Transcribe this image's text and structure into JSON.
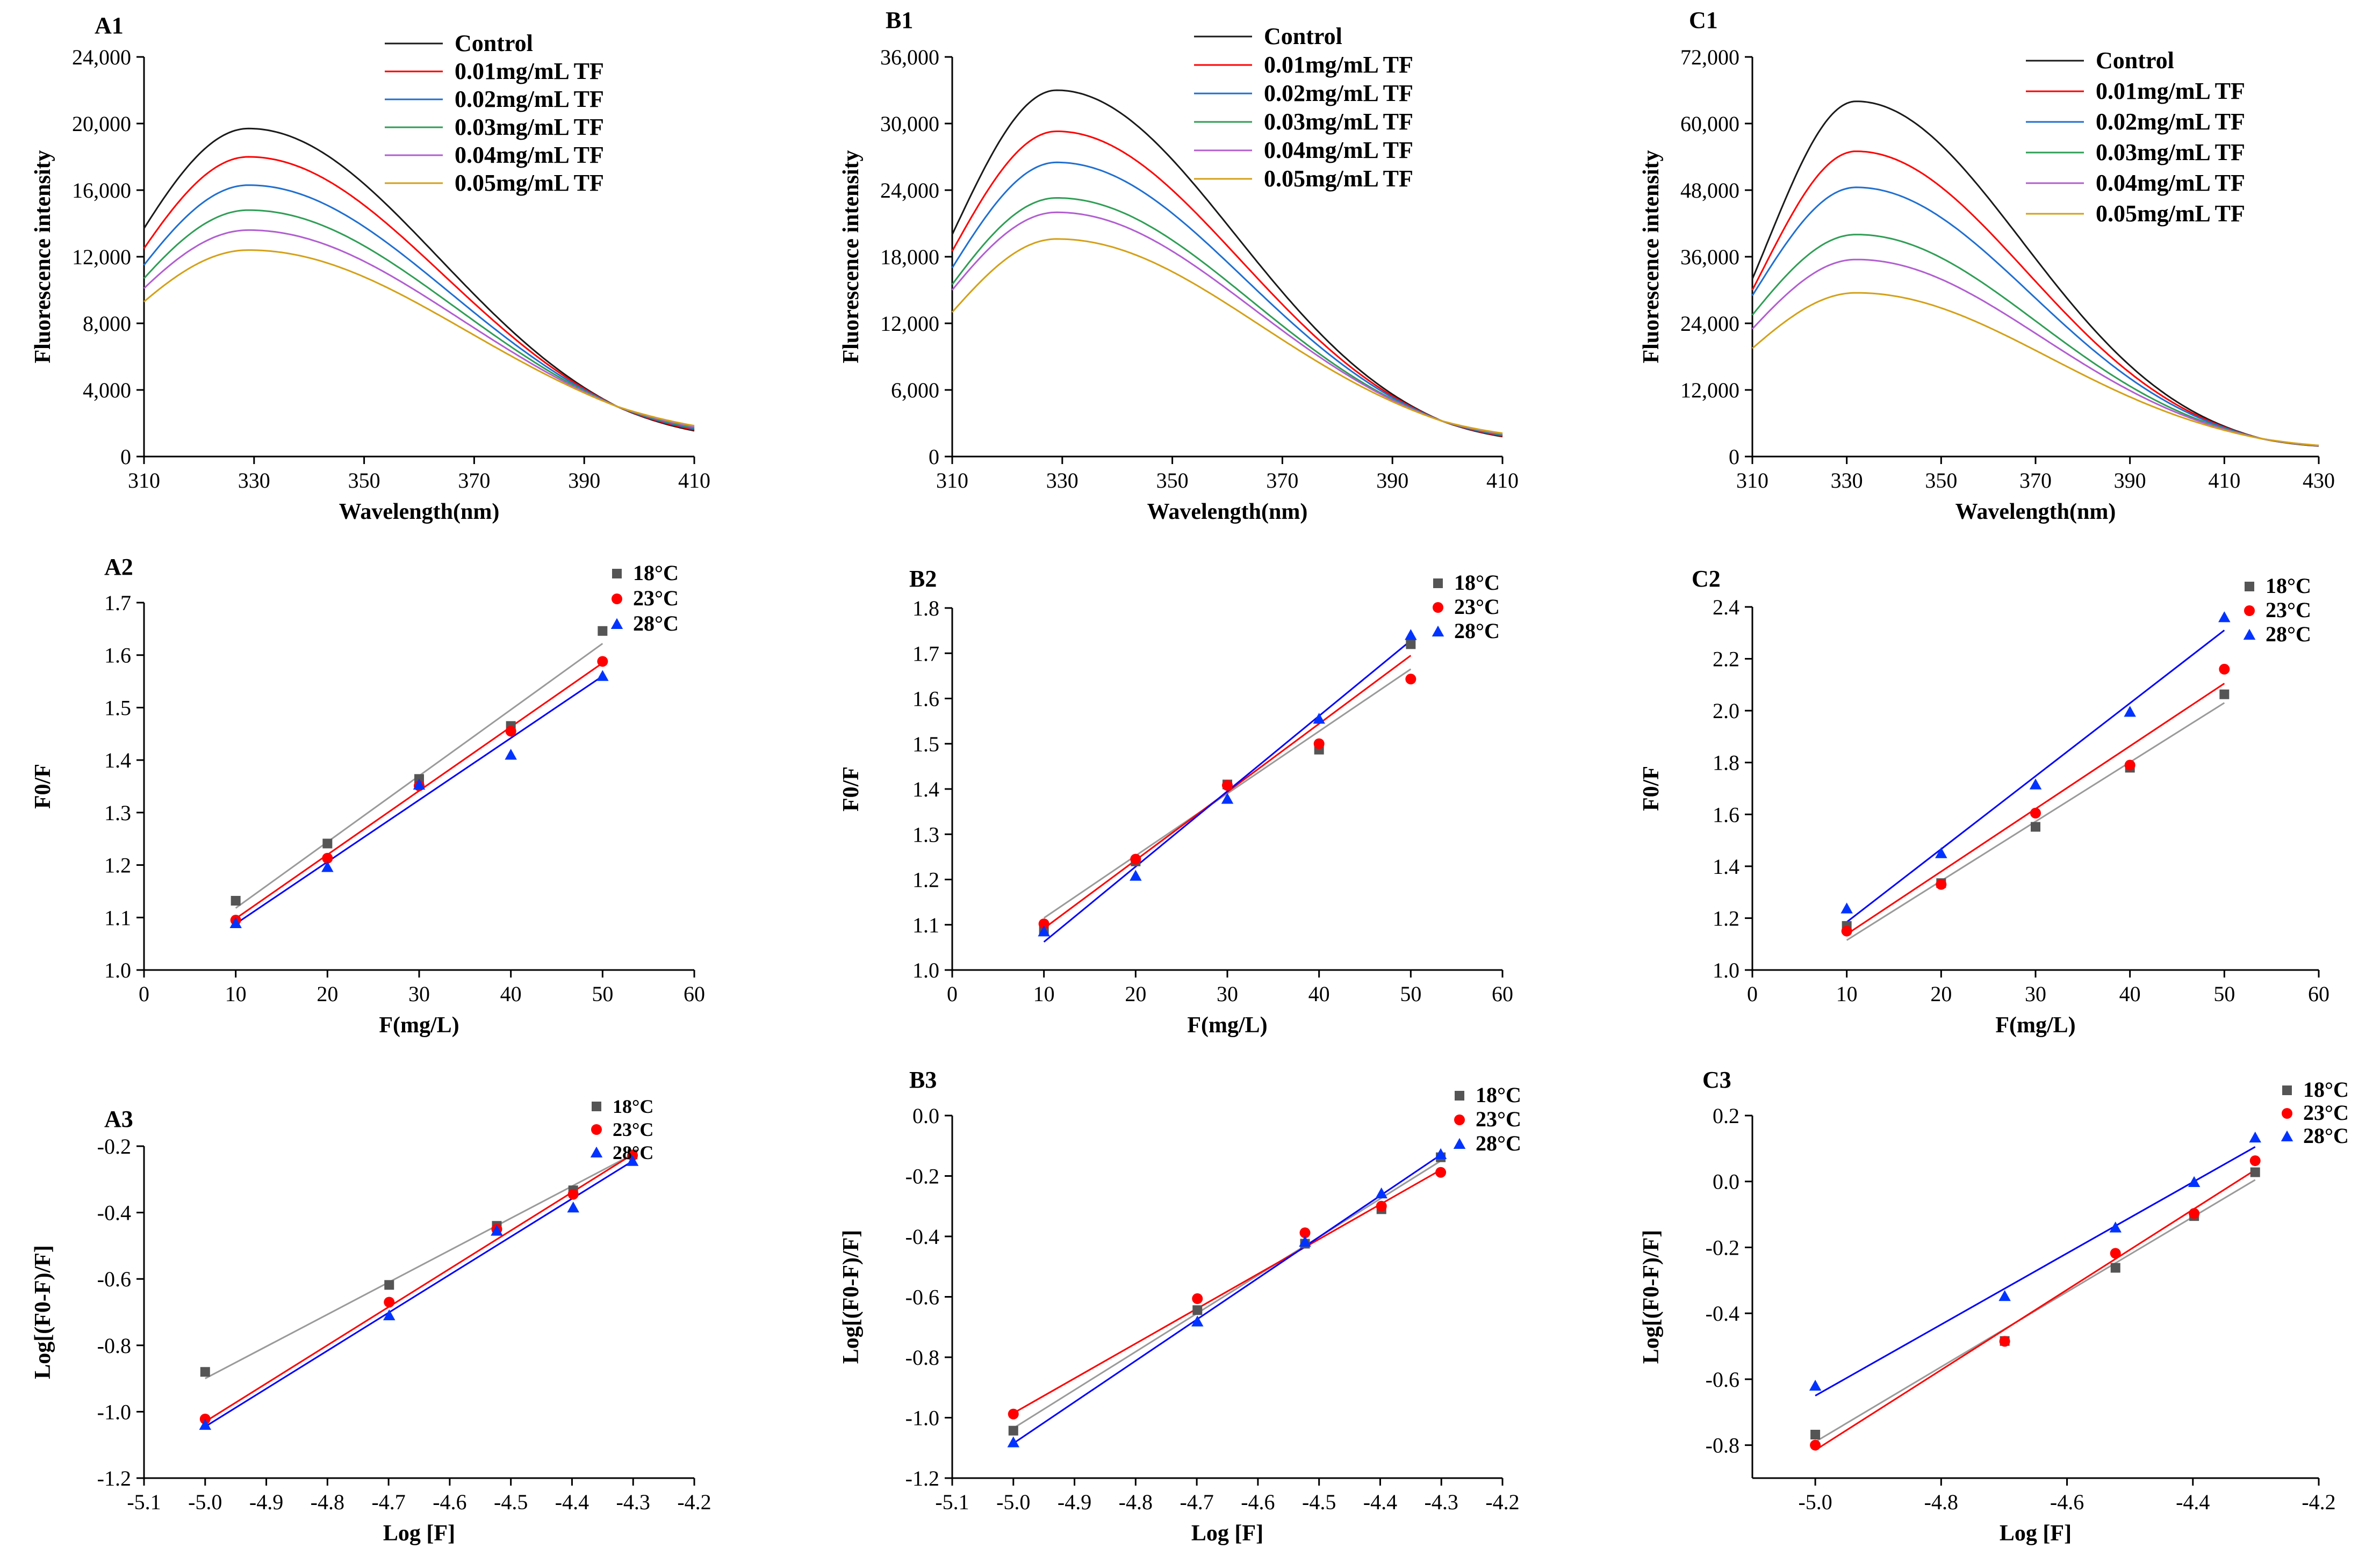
{
  "colors": {
    "Control": "#1a1a1a",
    "0.01mg/mL TF": "#ff0000",
    "0.02mg/mL TF": "#1f6fd1",
    "0.03mg/mL TF": "#2f9e55",
    "0.04mg/mL TF": "#b15ed1",
    "0.05mg/mL TF": "#d4a017",
    "18°C": "#555555",
    "23°C": "#ff0000",
    "28°C": "#0033ff",
    "fit18": "#9a9a9a",
    "fit23": "#ff0000",
    "fit28": "#0000ff"
  },
  "chart_data": [
    {
      "id": "A1",
      "type": "line",
      "label": "A1",
      "xlabel": "Wavelength(nm)",
      "ylabel": "Fluorescence intensity",
      "xlim": [
        310,
        410
      ],
      "ylim": [
        0,
        24000
      ],
      "xticks": [
        310,
        330,
        350,
        370,
        390,
        410
      ],
      "yticks": [
        0,
        4000,
        8000,
        12000,
        16000,
        20000,
        24000
      ],
      "ytick_labels": [
        "0",
        "4,000",
        "8,000",
        "12,000",
        "16,000",
        "20,000",
        "24,000"
      ],
      "xtick_labels": [
        "310",
        "330",
        "350",
        "370",
        "390",
        "410"
      ],
      "peak_x": 329,
      "cross_x": 396,
      "cross_y": 3000,
      "end_y_min": 1550,
      "end_y_max": 1850,
      "series": [
        {
          "name": "Control",
          "start": 13700,
          "peak": 19700
        },
        {
          "name": "0.01mg/mL TF",
          "start": 12500,
          "peak": 18000
        },
        {
          "name": "0.02mg/mL TF",
          "start": 11500,
          "peak": 16300
        },
        {
          "name": "0.03mg/mL TF",
          "start": 10700,
          "peak": 14800
        },
        {
          "name": "0.04mg/mL TF",
          "start": 10100,
          "peak": 13600
        },
        {
          "name": "0.05mg/mL TF",
          "start": 9300,
          "peak": 12400
        }
      ]
    },
    {
      "id": "B1",
      "type": "line",
      "label": "B1",
      "xlabel": "Wavelength(nm)",
      "ylabel": "Fluorescence intensity",
      "xlim": [
        310,
        410
      ],
      "ylim": [
        0,
        36000
      ],
      "xticks": [
        310,
        330,
        350,
        370,
        390,
        410
      ],
      "yticks": [
        0,
        6000,
        12000,
        18000,
        24000,
        30000,
        36000
      ],
      "ytick_labels": [
        "0",
        "6,000",
        "12,000",
        "18,000",
        "24,000",
        "30,000",
        "36,000"
      ],
      "xtick_labels": [
        "310",
        "330",
        "350",
        "370",
        "390",
        "410"
      ],
      "peak_x": 329,
      "cross_x": 399,
      "cross_y": 3200,
      "end_y_min": 1800,
      "end_y_max": 2100,
      "series": [
        {
          "name": "Control",
          "start": 20000,
          "peak": 33000
        },
        {
          "name": "0.01mg/mL TF",
          "start": 18500,
          "peak": 29300
        },
        {
          "name": "0.02mg/mL TF",
          "start": 17000,
          "peak": 26500
        },
        {
          "name": "0.03mg/mL TF",
          "start": 15500,
          "peak": 23300
        },
        {
          "name": "0.04mg/mL TF",
          "start": 15000,
          "peak": 22000
        },
        {
          "name": "0.05mg/mL TF",
          "start": 13000,
          "peak": 19600
        }
      ]
    },
    {
      "id": "C1",
      "type": "line",
      "label": "C1",
      "xlabel": "Wavelength(nm)",
      "ylabel": "Fluorescence intensity",
      "xlim": [
        310,
        430
      ],
      "ylim": [
        0,
        72000
      ],
      "xticks": [
        310,
        330,
        350,
        370,
        390,
        410,
        430
      ],
      "yticks": [
        0,
        12000,
        24000,
        36000,
        48000,
        60000,
        72000
      ],
      "ytick_labels": [
        "0",
        "12,000",
        "24,000",
        "36,000",
        "48,000",
        "60,000",
        "72,000"
      ],
      "xtick_labels": [
        "310",
        "330",
        "350",
        "370",
        "390",
        "410",
        "430"
      ],
      "peak_x": 332,
      "cross_x": 418,
      "cross_y": 3200,
      "end_y_min": 1900,
      "end_y_max": 2000,
      "series": [
        {
          "name": "Control",
          "start": 32000,
          "peak": 64000
        },
        {
          "name": "0.01mg/mL TF",
          "start": 30000,
          "peak": 55000
        },
        {
          "name": "0.02mg/mL TF",
          "start": 29000,
          "peak": 48500
        },
        {
          "name": "0.03mg/mL TF",
          "start": 25500,
          "peak": 40000
        },
        {
          "name": "0.04mg/mL TF",
          "start": 23000,
          "peak": 35500
        },
        {
          "name": "0.05mg/mL TF",
          "start": 19500,
          "peak": 29500
        }
      ]
    },
    {
      "id": "A2",
      "type": "scatter",
      "label": "A2",
      "xlabel": "F(mg/L)",
      "ylabel": "F0/F",
      "xlim": [
        0,
        60
      ],
      "ylim": [
        1.0,
        1.7
      ],
      "xticks": [
        0,
        10,
        20,
        30,
        40,
        50,
        60
      ],
      "yticks": [
        1.0,
        1.1,
        1.2,
        1.3,
        1.4,
        1.5,
        1.6,
        1.7
      ],
      "xtick_labels": [
        "0",
        "10",
        "20",
        "30",
        "40",
        "50",
        "60"
      ],
      "ytick_labels": [
        "1.0",
        "1.1",
        "1.2",
        "1.3",
        "1.4",
        "1.5",
        "1.6",
        "1.7"
      ],
      "series": [
        {
          "name": "18°C",
          "marker": "square",
          "x": [
            10,
            20,
            30,
            40,
            50
          ],
          "y": [
            1.132,
            1.241,
            1.364,
            1.465,
            1.646
          ],
          "fit": [
            [
              10,
              1.118
            ],
            [
              50,
              1.622
            ]
          ]
        },
        {
          "name": "23°C",
          "marker": "circle",
          "x": [
            10,
            20,
            30,
            40,
            50
          ],
          "y": [
            1.095,
            1.213,
            1.351,
            1.455,
            1.588
          ],
          "fit": [
            [
              10,
              1.098
            ],
            [
              50,
              1.585
            ]
          ]
        },
        {
          "name": "28°C",
          "marker": "triangle",
          "x": [
            10,
            20,
            30,
            40,
            50
          ],
          "y": [
            1.089,
            1.196,
            1.353,
            1.41,
            1.56
          ],
          "fit": [
            [
              10,
              1.088
            ],
            [
              50,
              1.56
            ]
          ]
        }
      ]
    },
    {
      "id": "B2",
      "type": "scatter",
      "label": "B2",
      "xlabel": "F(mg/L)",
      "ylabel": "F0/F",
      "xlim": [
        0,
        60
      ],
      "ylim": [
        1.0,
        1.8
      ],
      "xticks": [
        0,
        10,
        20,
        30,
        40,
        50,
        60
      ],
      "yticks": [
        1.0,
        1.1,
        1.2,
        1.3,
        1.4,
        1.5,
        1.6,
        1.7,
        1.8
      ],
      "xtick_labels": [
        "0",
        "10",
        "20",
        "30",
        "40",
        "50",
        "60"
      ],
      "ytick_labels": [
        "1.0",
        "1.1",
        "1.2",
        "1.3",
        "1.4",
        "1.5",
        "1.6",
        "1.7",
        "1.8"
      ],
      "series": [
        {
          "name": "18°C",
          "marker": "square",
          "x": [
            10,
            20,
            30,
            40,
            50
          ],
          "y": [
            1.09,
            1.24,
            1.41,
            1.487,
            1.72
          ],
          "fit": [
            [
              10,
              1.115
            ],
            [
              50,
              1.665
            ]
          ]
        },
        {
          "name": "23°C",
          "marker": "circle",
          "x": [
            10,
            20,
            30,
            40,
            50
          ],
          "y": [
            1.102,
            1.245,
            1.408,
            1.5,
            1.643
          ],
          "fit": [
            [
              10,
              1.092
            ],
            [
              50,
              1.695
            ]
          ]
        },
        {
          "name": "28°C",
          "marker": "triangle",
          "x": [
            10,
            20,
            30,
            40,
            50
          ],
          "y": [
            1.085,
            1.208,
            1.378,
            1.555,
            1.74
          ],
          "fit": [
            [
              10,
              1.062
            ],
            [
              50,
              1.728
            ]
          ]
        }
      ]
    },
    {
      "id": "C2",
      "type": "scatter",
      "label": "C2",
      "xlabel": "F(mg/L)",
      "ylabel": "F0/F",
      "xlim": [
        0,
        60
      ],
      "ylim": [
        1.0,
        2.4
      ],
      "xticks": [
        0,
        10,
        20,
        30,
        40,
        50,
        60
      ],
      "yticks": [
        1.0,
        1.2,
        1.4,
        1.6,
        1.8,
        2.0,
        2.2,
        2.4
      ],
      "xtick_labels": [
        "0",
        "10",
        "20",
        "30",
        "40",
        "50",
        "60"
      ],
      "ytick_labels": [
        "1.0",
        "1.2",
        "1.4",
        "1.6",
        "1.8",
        "2.0",
        "2.2",
        "2.4"
      ],
      "series": [
        {
          "name": "18°C",
          "marker": "square",
          "x": [
            10,
            20,
            30,
            40,
            50
          ],
          "y": [
            1.17,
            1.335,
            1.552,
            1.78,
            2.063
          ],
          "fit": [
            [
              10,
              1.115
            ],
            [
              50,
              2.03
            ]
          ]
        },
        {
          "name": "23°C",
          "marker": "circle",
          "x": [
            10,
            20,
            30,
            40,
            50
          ],
          "y": [
            1.15,
            1.33,
            1.605,
            1.79,
            2.16
          ],
          "fit": [
            [
              10,
              1.138
            ],
            [
              50,
              2.105
            ]
          ]
        },
        {
          "name": "28°C",
          "marker": "triangle",
          "x": [
            10,
            20,
            30,
            40,
            50
          ],
          "y": [
            1.237,
            1.45,
            1.715,
            1.995,
            2.36
          ],
          "fit": [
            [
              10,
              1.185
            ],
            [
              50,
              2.31
            ]
          ]
        }
      ]
    },
    {
      "id": "A3",
      "type": "scatter",
      "label": "A3",
      "xlabel": "Log [F]",
      "ylabel": "Log[(F0-F)/F]",
      "xlim": [
        -5.1,
        -4.2
      ],
      "ylim": [
        -1.2,
        -0.2
      ],
      "xticks": [
        -5.1,
        -5.0,
        -4.9,
        -4.8,
        -4.7,
        -4.6,
        -4.5,
        -4.4,
        -4.3,
        -4.2
      ],
      "yticks": [
        -1.2,
        -1.0,
        -0.8,
        -0.6,
        -0.4,
        -0.2
      ],
      "xtick_labels": [
        "-5.1",
        "-5.0",
        "-4.9",
        "-4.8",
        "-4.7",
        "-4.6",
        "-4.5",
        "-4.4",
        "-4.3",
        "-4.2"
      ],
      "ytick_labels": [
        "-1.2",
        "-1.0",
        "-0.8",
        "-0.6",
        "-0.4",
        "-0.2"
      ],
      "series": [
        {
          "name": "18°C",
          "marker": "square",
          "x": [
            -5.0,
            -4.699,
            -4.523,
            -4.398,
            -4.301
          ],
          "y": [
            -0.88,
            -0.618,
            -0.44,
            -0.333,
            -0.225
          ],
          "fit": [
            [
              -5.0,
              -0.9
            ],
            [
              -4.301,
              -0.225
            ]
          ]
        },
        {
          "name": "23°C",
          "marker": "circle",
          "x": [
            -5.0,
            -4.699,
            -4.523,
            -4.398,
            -4.301
          ],
          "y": [
            -1.022,
            -0.67,
            -0.45,
            -0.345,
            -0.228
          ],
          "fit": [
            [
              -5.0,
              -1.03
            ],
            [
              -4.301,
              -0.225
            ]
          ]
        },
        {
          "name": "28°C",
          "marker": "triangle",
          "x": [
            -5.0,
            -4.699,
            -4.523,
            -4.398,
            -4.301
          ],
          "y": [
            -1.04,
            -0.71,
            -0.455,
            -0.385,
            -0.245
          ],
          "fit": [
            [
              -5.0,
              -1.045
            ],
            [
              -4.301,
              -0.245
            ]
          ]
        }
      ]
    },
    {
      "id": "B3",
      "type": "scatter",
      "label": "B3",
      "xlabel": "Log [F]",
      "ylabel": "Log[(F0-F)/F]",
      "xlim": [
        -5.1,
        -4.2
      ],
      "ylim": [
        -1.2,
        0.0
      ],
      "xticks": [
        -5.1,
        -5.0,
        -4.9,
        -4.8,
        -4.7,
        -4.6,
        -4.5,
        -4.4,
        -4.3,
        -4.2
      ],
      "yticks": [
        -1.2,
        -1.0,
        -0.8,
        -0.6,
        -0.4,
        -0.2,
        0.0
      ],
      "xtick_labels": [
        "-5.1",
        "-5.0",
        "-4.9",
        "-4.8",
        "-4.7",
        "-4.6",
        "-4.5",
        "-4.4",
        "-4.3",
        "-4.2"
      ],
      "ytick_labels": [
        "-1.2",
        "-1.0",
        "-0.8",
        "-0.6",
        "-0.4",
        "-0.2",
        "0.0"
      ],
      "series": [
        {
          "name": "18°C",
          "marker": "square",
          "x": [
            -5.0,
            -4.699,
            -4.523,
            -4.398,
            -4.301
          ],
          "y": [
            -1.043,
            -0.644,
            -0.424,
            -0.31,
            -0.138
          ],
          "fit": [
            [
              -5.0,
              -1.035
            ],
            [
              -4.301,
              -0.15
            ]
          ]
        },
        {
          "name": "23°C",
          "marker": "circle",
          "x": [
            -5.0,
            -4.699,
            -4.523,
            -4.398,
            -4.301
          ],
          "y": [
            -0.988,
            -0.606,
            -0.388,
            -0.3,
            -0.188
          ],
          "fit": [
            [
              -5.0,
              -0.985
            ],
            [
              -4.301,
              -0.18
            ]
          ]
        },
        {
          "name": "28°C",
          "marker": "triangle",
          "x": [
            -5.0,
            -4.699,
            -4.523,
            -4.398,
            -4.301
          ],
          "y": [
            -1.082,
            -0.682,
            -0.418,
            -0.258,
            -0.128
          ],
          "fit": [
            [
              -5.0,
              -1.085
            ],
            [
              -4.301,
              -0.13
            ]
          ]
        }
      ]
    },
    {
      "id": "C3",
      "type": "scatter",
      "label": "C3",
      "xlabel": "Log [F]",
      "ylabel": "Log[(F0-F)/F]",
      "xlim": [
        -5.1,
        -4.2
      ],
      "ylim": [
        -0.9,
        0.2
      ],
      "xticks": [
        -5.0,
        -4.8,
        -4.6,
        -4.4,
        -4.2
      ],
      "yticks": [
        -0.8,
        -0.6,
        -0.4,
        -0.2,
        0.0,
        0.2
      ],
      "xtick_labels": [
        "-5.0",
        "-4.8",
        "-4.6",
        "-4.4",
        "-4.2"
      ],
      "ytick_labels": [
        "-0.8",
        "-0.6",
        "-0.4",
        "-0.2",
        "0.0",
        "0.2"
      ],
      "series": [
        {
          "name": "18°C",
          "marker": "square",
          "x": [
            -5.0,
            -4.699,
            -4.523,
            -4.398,
            -4.301
          ],
          "y": [
            -0.768,
            -0.484,
            -0.262,
            -0.105,
            0.028
          ],
          "fit": [
            [
              -5.0,
              -0.79
            ],
            [
              -4.301,
              0.005
            ]
          ]
        },
        {
          "name": "23°C",
          "marker": "circle",
          "x": [
            -5.0,
            -4.699,
            -4.523,
            -4.398,
            -4.301
          ],
          "y": [
            -0.8,
            -0.485,
            -0.218,
            -0.097,
            0.063
          ],
          "fit": [
            [
              -5.0,
              -0.815
            ],
            [
              -4.301,
              0.035
            ]
          ]
        },
        {
          "name": "28°C",
          "marker": "triangle",
          "x": [
            -5.0,
            -4.699,
            -4.523,
            -4.398,
            -4.301
          ],
          "y": [
            -0.62,
            -0.348,
            -0.14,
            -0.002,
            0.133
          ],
          "fit": [
            [
              -5.0,
              -0.65
            ],
            [
              -4.301,
              0.105
            ]
          ]
        }
      ]
    }
  ]
}
